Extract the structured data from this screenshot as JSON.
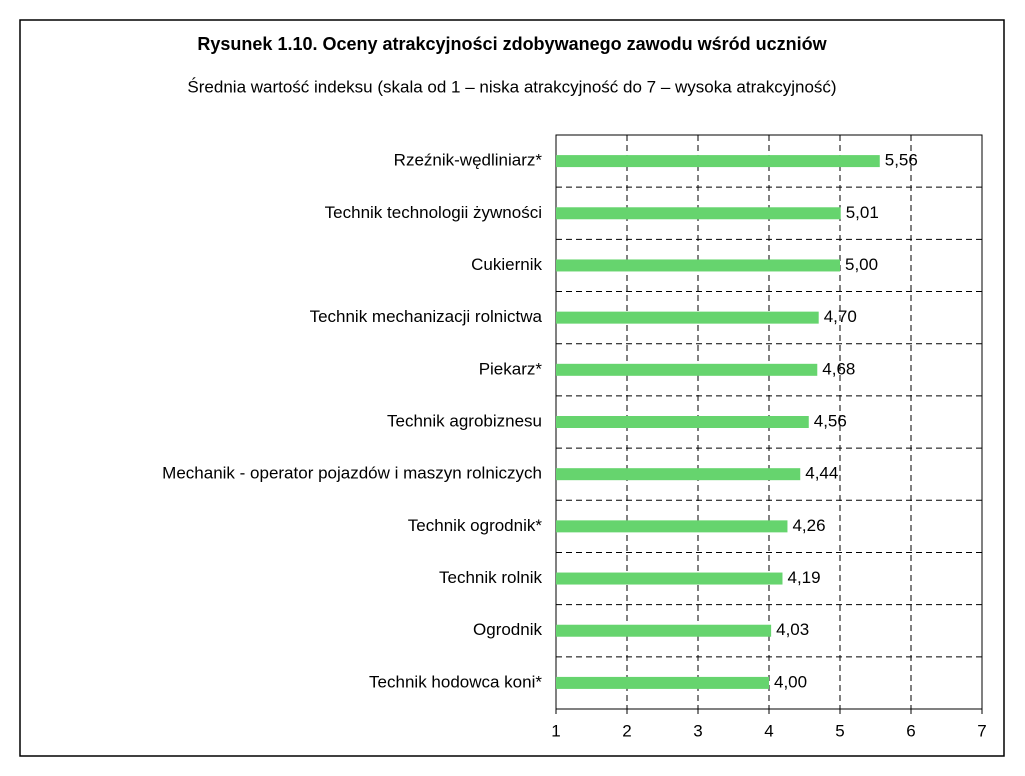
{
  "chart_data": {
    "type": "bar",
    "orientation": "horizontal",
    "title": "Rysunek 1.10. Oceny atrakcyjności zdobywanego zawodu wśród uczniów",
    "subtitle": "Średnia wartość indeksu (skala od 1 – niska atrakcyjność do 7 – wysoka atrakcyjność)",
    "categories": [
      "Rzeźnik-wędliniarz*",
      "Technik technologii żywności",
      "Cukiernik",
      "Technik mechanizacji rolnictwa",
      "Piekarz*",
      "Technik agrobiznesu",
      "Mechanik - operator pojazdów i maszyn rolniczych",
      "Technik ogrodnik*",
      "Technik rolnik",
      "Ogrodnik",
      "Technik hodowca koni*"
    ],
    "values": [
      5.56,
      5.01,
      5.0,
      4.7,
      4.68,
      4.56,
      4.44,
      4.26,
      4.19,
      4.03,
      4.0
    ],
    "value_labels": [
      "5,56",
      "5,01",
      "5,00",
      "4,70",
      "4,68",
      "4,56",
      "4,44",
      "4,26",
      "4,19",
      "4,03",
      "4,00"
    ],
    "color": "#66d46e",
    "xlim": [
      1,
      7
    ],
    "xticks": [
      1,
      2,
      3,
      4,
      5,
      6,
      7
    ],
    "grid": true
  }
}
